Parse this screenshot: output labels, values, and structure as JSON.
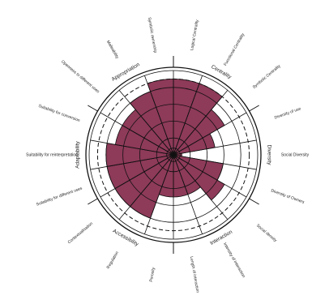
{
  "chart_data": {
    "type": "polar-bar",
    "bar_color": "#8e3a59",
    "rmax": 10,
    "reference_level": 9,
    "gridlines": [
      2,
      4,
      6,
      8
    ],
    "categories": [
      "Logical Centrality",
      "Functional Centrality",
      "Symbolic Centrality",
      "Diversity of use",
      "Social Diversity",
      "Diversity of Owners",
      "Social density",
      "Intensity of interaction",
      "Length of interaction",
      "Porosity",
      "Regulation",
      "Contextualisation",
      "Suitability for different uses",
      "Suitability for reinterpretation",
      "Suitability for conversion",
      "Openness to different uses",
      "Malleability",
      "Symbolic ownership"
    ],
    "values": [
      9,
      9,
      7,
      5,
      1,
      6,
      7,
      5,
      5,
      5,
      8,
      8,
      8,
      8,
      7,
      7,
      8,
      9
    ],
    "groups": [
      {
        "label": "Centrality",
        "start": 0,
        "end": 3
      },
      {
        "label": "Diversity",
        "start": 3,
        "end": 6
      },
      {
        "label": "Interaction",
        "start": 6,
        "end": 9
      },
      {
        "label": "Accessibility",
        "start": 9,
        "end": 12
      },
      {
        "label": "Adaptability",
        "start": 12,
        "end": 15
      },
      {
        "label": "Appropriation",
        "start": 15,
        "end": 18
      }
    ]
  }
}
